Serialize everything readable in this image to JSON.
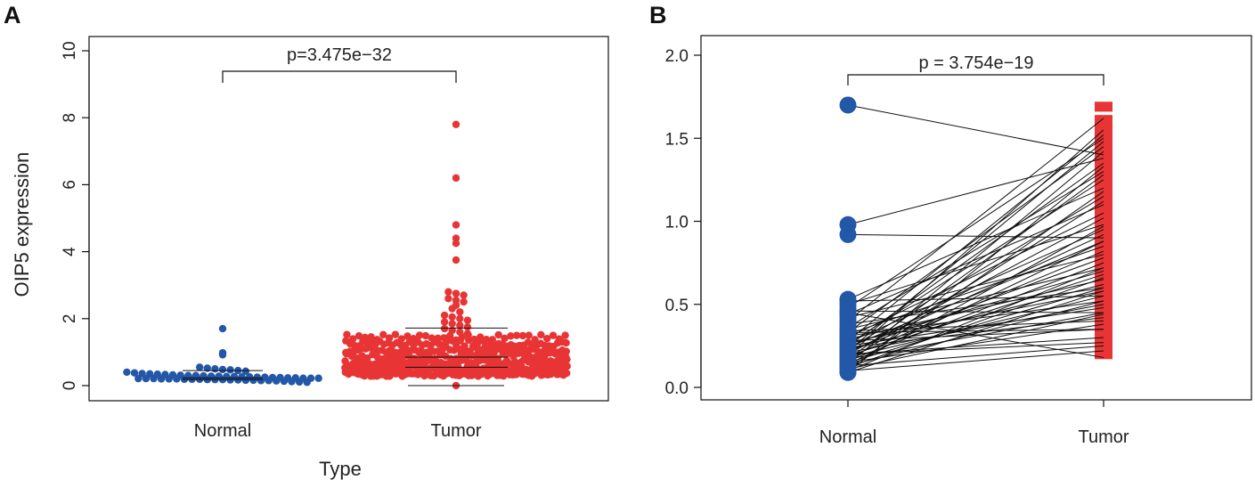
{
  "colors": {
    "normal": "#2357a8",
    "tumor": "#e83434",
    "line": "#111111"
  },
  "chart_data": [
    {
      "panel": "A",
      "type": "scatter",
      "subtype": "beeswarm",
      "title": "",
      "xlabel": "Type",
      "ylabel": "OIP5 expression",
      "categories": [
        "Normal",
        "Tumor"
      ],
      "ylim": [
        0,
        10.3
      ],
      "yticks": [
        0,
        2,
        4,
        6,
        8,
        10
      ],
      "ytick_labels": [
        "0",
        "2",
        "4",
        "6",
        "8",
        "10"
      ],
      "pvalue_label": "p=3.475e−32",
      "series": [
        {
          "name": "Normal",
          "color": "#2357a8",
          "n": 59,
          "values": [
            1.7,
            0.98,
            0.92,
            0.55,
            0.52,
            0.5,
            0.48,
            0.47,
            0.45,
            0.43,
            0.4,
            0.38,
            0.36,
            0.35,
            0.34,
            0.33,
            0.32,
            0.31,
            0.3,
            0.3,
            0.29,
            0.28,
            0.28,
            0.27,
            0.27,
            0.26,
            0.26,
            0.25,
            0.25,
            0.24,
            0.24,
            0.23,
            0.23,
            0.22,
            0.22,
            0.22,
            0.21,
            0.21,
            0.21,
            0.2,
            0.2,
            0.2,
            0.19,
            0.19,
            0.19,
            0.18,
            0.18,
            0.18,
            0.17,
            0.17,
            0.16,
            0.16,
            0.15,
            0.15,
            0.14,
            0.13,
            0.12,
            0.11,
            0.1
          ],
          "median": 0.23,
          "q1": 0.18,
          "q3": 0.45
        },
        {
          "name": "Tumor",
          "color": "#e83434",
          "n": 535,
          "distribution": "dense 0.3–1.5 with tail",
          "outliers": [
            7.8,
            6.2,
            4.8,
            4.4,
            4.25,
            3.75,
            2.8,
            2.75,
            2.7,
            2.6,
            2.55,
            2.5,
            2.4,
            2.3,
            2.2,
            2.1,
            2.05,
            2.0,
            1.95,
            1.9,
            1.85,
            1.8,
            1.75,
            1.7,
            1.65,
            1.6,
            1.55,
            1.5
          ],
          "median": 0.85,
          "q1": 0.55,
          "q3": 1.72,
          "whisker_low": 0.0
        }
      ]
    },
    {
      "panel": "B",
      "type": "line",
      "subtype": "paired",
      "title": "",
      "xlabel": "",
      "ylabel": "",
      "categories": [
        "Normal",
        "Tumor"
      ],
      "ylim": [
        -0.05,
        2.12
      ],
      "yticks": [
        0.0,
        0.5,
        1.0,
        1.5,
        2.0
      ],
      "ytick_labels": [
        "0.0",
        "0.5",
        "1.0",
        "1.5",
        "2.0"
      ],
      "pvalue_label": "p = 3.754e−19",
      "pairs": [
        [
          1.7,
          1.4
        ],
        [
          0.98,
          1.38
        ],
        [
          0.92,
          0.9
        ],
        [
          0.53,
          1.2
        ],
        [
          0.52,
          0.55
        ],
        [
          0.5,
          0.98
        ],
        [
          0.48,
          1.5
        ],
        [
          0.46,
          0.45
        ],
        [
          0.44,
          1.1
        ],
        [
          0.42,
          0.8
        ],
        [
          0.4,
          1.62
        ],
        [
          0.38,
          0.6
        ],
        [
          0.36,
          1.3
        ],
        [
          0.35,
          0.72
        ],
        [
          0.34,
          0.4
        ],
        [
          0.33,
          1.45
        ],
        [
          0.32,
          0.85
        ],
        [
          0.31,
          0.52
        ],
        [
          0.3,
          1.05
        ],
        [
          0.29,
          0.65
        ],
        [
          0.28,
          1.52
        ],
        [
          0.28,
          0.35
        ],
        [
          0.27,
          0.95
        ],
        [
          0.27,
          0.58
        ],
        [
          0.26,
          1.25
        ],
        [
          0.26,
          0.7
        ],
        [
          0.25,
          0.48
        ],
        [
          0.25,
          1.35
        ],
        [
          0.24,
          0.88
        ],
        [
          0.24,
          0.42
        ],
        [
          0.23,
          1.15
        ],
        [
          0.23,
          0.62
        ],
        [
          0.22,
          0.78
        ],
        [
          0.22,
          1.48
        ],
        [
          0.21,
          0.5
        ],
        [
          0.21,
          0.92
        ],
        [
          0.2,
          0.3
        ],
        [
          0.2,
          1.02
        ],
        [
          0.19,
          0.68
        ],
        [
          0.19,
          1.55
        ],
        [
          0.18,
          0.55
        ],
        [
          0.18,
          0.82
        ],
        [
          0.17,
          1.28
        ],
        [
          0.17,
          0.45
        ],
        [
          0.16,
          0.75
        ],
        [
          0.16,
          1.12
        ],
        [
          0.15,
          0.38
        ],
        [
          0.15,
          0.6
        ],
        [
          0.14,
          1.42
        ],
        [
          0.14,
          0.88
        ],
        [
          0.13,
          0.52
        ],
        [
          0.13,
          0.25
        ],
        [
          0.12,
          0.97
        ],
        [
          0.12,
          0.66
        ],
        [
          0.11,
          1.18
        ],
        [
          0.11,
          0.44
        ],
        [
          0.1,
          0.72
        ],
        [
          0.1,
          0.22
        ],
        [
          0.09,
          0.58
        ],
        [
          0.09,
          1.33
        ],
        [
          0.33,
          0.35
        ],
        [
          0.2,
          0.27
        ],
        [
          0.45,
          0.18
        ]
      ],
      "tumor_bar_range": [
        0.17,
        1.72
      ],
      "tumor_bar_gap": [
        1.64,
        1.66
      ]
    }
  ]
}
